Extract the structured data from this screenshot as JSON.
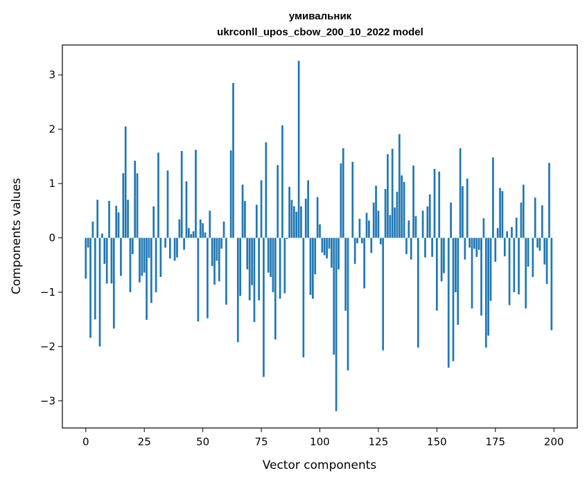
{
  "chart_data": {
    "type": "bar",
    "title_line1": "умивальник",
    "title_line2": "ukrconll_upos_cbow_200_10_2022 model",
    "xlabel": "Vector components",
    "ylabel": "Components values",
    "xlim": [
      -10,
      210
    ],
    "ylim": [
      -3.5,
      3.55
    ],
    "xticks": [
      0,
      25,
      50,
      75,
      100,
      125,
      150,
      175,
      200
    ],
    "yticks": [
      -3,
      -2,
      -1,
      0,
      1,
      2,
      3
    ],
    "ytick_labels": [
      "−3",
      "−2",
      "−1",
      "0",
      "1",
      "2",
      "3"
    ],
    "bar_color": "#1f77b4",
    "grid": false,
    "values": [
      -0.75,
      -0.18,
      -1.84,
      0.3,
      -1.5,
      0.7,
      -2.0,
      0.08,
      -0.48,
      -0.84,
      0.68,
      -0.84,
      -1.67,
      0.59,
      0.47,
      -0.7,
      1.19,
      2.05,
      0.7,
      -1.0,
      -0.3,
      1.42,
      1.19,
      -0.82,
      -0.7,
      -0.64,
      -1.51,
      -0.37,
      -1.2,
      0.58,
      -1.0,
      1.57,
      -0.72,
      0.0,
      -0.18,
      1.24,
      -0.38,
      0.0,
      -0.42,
      -0.36,
      0.34,
      1.6,
      -0.22,
      1.04,
      0.18,
      0.07,
      0.12,
      1.62,
      -1.54,
      0.34,
      0.27,
      0.1,
      -1.48,
      0.5,
      -0.52,
      -0.86,
      -0.42,
      -0.8,
      -0.2,
      0.3,
      -1.23,
      0.0,
      1.61,
      2.85,
      0.0,
      -1.92,
      -1.07,
      0.98,
      0.68,
      -0.58,
      -1.15,
      -0.87,
      -1.55,
      0.61,
      -1.15,
      1.06,
      -2.56,
      1.76,
      -0.64,
      -0.72,
      -1.0,
      -1.87,
      1.34,
      -1.12,
      2.07,
      -1.02,
      -0.02,
      0.94,
      0.7,
      0.58,
      0.48,
      3.26,
      0.58,
      -2.2,
      0.72,
      1.06,
      -1.05,
      -1.12,
      -0.67,
      0.75,
      0.25,
      -0.27,
      -0.32,
      -0.38,
      -0.2,
      -0.55,
      -2.15,
      -3.19,
      -0.58,
      1.37,
      1.65,
      -1.34,
      -2.44,
      0.0,
      1.4,
      -0.48,
      -0.1,
      0.35,
      -0.1,
      -0.93,
      0.46,
      0.32,
      -0.28,
      0.65,
      0.96,
      0.5,
      -0.12,
      -2.07,
      0.9,
      1.54,
      0.42,
      1.64,
      0.56,
      0.85,
      1.91,
      1.15,
      1.03,
      -0.3,
      0.32,
      -0.4,
      1.33,
      0.4,
      -2.02,
      0.0,
      0.5,
      -0.36,
      0.58,
      0.8,
      -0.35,
      1.27,
      -1.34,
      1.22,
      -0.8,
      -0.65,
      0.0,
      -2.39,
      0.65,
      -2.27,
      -1.0,
      -1.6,
      1.65,
      0.95,
      -0.4,
      1.09,
      -0.18,
      -1.3,
      -0.2,
      -0.35,
      -0.22,
      -1.43,
      0.36,
      -2.02,
      -1.8,
      -1.16,
      1.48,
      -0.44,
      0.18,
      0.92,
      0.86,
      -0.34,
      0.12,
      -1.24,
      0.2,
      -1.0,
      0.37,
      -1.04,
      0.65,
      0.98,
      -1.3,
      -0.53,
      0.0,
      -0.72,
      0.74,
      -0.18,
      -0.24,
      0.6,
      -0.49,
      -0.85,
      1.38,
      -1.7
    ]
  }
}
